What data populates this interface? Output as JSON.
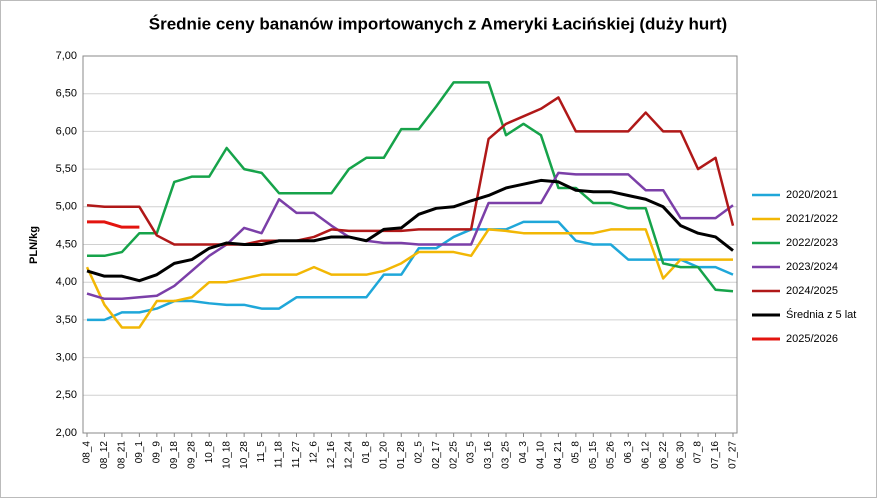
{
  "chart_data": {
    "type": "line",
    "title": "Średnie ceny bananów  importowanych  z Ameryki Łacińskiej  (duży hurt)",
    "y_label": "PLN/kg",
    "categories": [
      "08_4",
      "08_12",
      "08_21",
      "09_1",
      "09_9",
      "09_18",
      "09_28",
      "10_8",
      "10_18",
      "10_28",
      "11_5",
      "11_18",
      "11_27",
      "12_6",
      "12_16",
      "12_24",
      "01_8",
      "01_20",
      "01_28",
      "02_5",
      "02_17",
      "02_25",
      "03_5",
      "03_16",
      "03_25",
      "04_3",
      "04_10",
      "04_21",
      "05_8",
      "05_15",
      "05_26",
      "06_3",
      "06_12",
      "06_22",
      "06_30",
      "07_8",
      "07_16",
      "07_27"
    ],
    "ylim": [
      2,
      7
    ],
    "yticks": [
      {
        "value": 2,
        "label": "2,00"
      },
      {
        "value": 2.5,
        "label": "2,50"
      },
      {
        "value": 3,
        "label": "3,00"
      },
      {
        "value": 3.5,
        "label": "3,50"
      },
      {
        "value": 4,
        "label": "4,00"
      },
      {
        "value": 4.5,
        "label": "4,50"
      },
      {
        "value": 5,
        "label": "5,00"
      },
      {
        "value": 5.5,
        "label": "5,50"
      },
      {
        "value": 6,
        "label": "6,00"
      },
      {
        "value": 6.5,
        "label": "6,50"
      },
      {
        "value": 7,
        "label": "7,00"
      }
    ],
    "grid": true,
    "legend": "right",
    "series": [
      {
        "name": "2020/2021",
        "color": "#1fa7d9",
        "values": [
          3.5,
          3.5,
          3.6,
          3.6,
          3.65,
          3.75,
          3.75,
          3.72,
          3.7,
          3.7,
          3.65,
          3.65,
          3.8,
          3.8,
          3.8,
          3.8,
          3.8,
          4.1,
          4.1,
          4.45,
          4.45,
          4.6,
          4.7,
          4.7,
          4.7,
          4.8,
          4.8,
          4.8,
          4.55,
          4.5,
          4.5,
          4.3,
          4.3,
          4.3,
          4.3,
          4.2,
          4.2,
          4.1
        ]
      },
      {
        "name": "2021/2022",
        "color": "#f2b705",
        "values": [
          4.2,
          3.7,
          3.4,
          3.4,
          3.75,
          3.75,
          3.8,
          4.0,
          4.0,
          4.05,
          4.1,
          4.1,
          4.1,
          4.2,
          4.1,
          4.1,
          4.1,
          4.15,
          4.25,
          4.4,
          4.4,
          4.4,
          4.35,
          4.7,
          4.68,
          4.65,
          4.65,
          4.65,
          4.65,
          4.65,
          4.7,
          4.7,
          4.7,
          4.05,
          4.3,
          4.3,
          4.3,
          4.3
        ]
      },
      {
        "name": "2022/2023",
        "color": "#16a34a",
        "values": [
          4.35,
          4.35,
          4.4,
          4.65,
          4.65,
          5.33,
          5.4,
          5.4,
          5.78,
          5.5,
          5.45,
          5.18,
          5.18,
          5.18,
          5.18,
          5.5,
          5.65,
          5.65,
          6.03,
          6.03,
          6.33,
          6.65,
          6.65,
          6.65,
          5.95,
          6.1,
          5.95,
          5.25,
          5.25,
          5.05,
          5.05,
          4.98,
          4.98,
          4.25,
          4.2,
          4.2,
          3.9,
          3.88
        ]
      },
      {
        "name": "2023/2024",
        "color": "#7b3fa8",
        "values": [
          3.85,
          3.78,
          3.78,
          3.8,
          3.82,
          3.95,
          4.15,
          4.35,
          4.5,
          4.72,
          4.65,
          5.1,
          4.92,
          4.92,
          4.75,
          4.6,
          4.55,
          4.52,
          4.52,
          4.5,
          4.5,
          4.5,
          4.5,
          5.05,
          5.05,
          5.05,
          5.05,
          5.45,
          5.43,
          5.43,
          5.43,
          5.43,
          5.22,
          5.22,
          4.85,
          4.85,
          4.85,
          5.02
        ]
      },
      {
        "name": "2024/2025",
        "color": "#b01818",
        "values": [
          5.02,
          5.0,
          5.0,
          5.0,
          4.62,
          4.5,
          4.5,
          4.5,
          4.5,
          4.5,
          4.55,
          4.55,
          4.55,
          4.6,
          4.7,
          4.68,
          4.68,
          4.68,
          4.68,
          4.7,
          4.7,
          4.7,
          4.7,
          5.9,
          6.1,
          6.2,
          6.3,
          6.45,
          6.0,
          6.0,
          6.0,
          6.0,
          6.25,
          6.0,
          6.0,
          5.5,
          5.65,
          4.75
        ]
      },
      {
        "name": "Średnia z 5 lat",
        "color": "#000000",
        "values": [
          4.15,
          4.08,
          4.08,
          4.02,
          4.1,
          4.25,
          4.3,
          4.45,
          4.52,
          4.5,
          4.5,
          4.55,
          4.55,
          4.55,
          4.6,
          4.6,
          4.55,
          4.7,
          4.72,
          4.9,
          4.98,
          5.0,
          5.08,
          5.15,
          5.25,
          5.3,
          5.35,
          5.33,
          5.22,
          5.2,
          5.2,
          5.15,
          5.1,
          5.0,
          4.75,
          4.65,
          4.6,
          4.42
        ]
      },
      {
        "name": "2025/2026",
        "color": "#e3140f",
        "values": [
          4.8,
          4.8,
          4.73,
          4.73,
          null,
          null,
          null,
          null,
          null,
          null,
          null,
          null,
          null,
          null,
          null,
          null,
          null,
          null,
          null,
          null,
          null,
          null,
          null,
          null,
          null,
          null,
          null,
          null,
          null,
          null,
          null,
          null,
          null,
          null,
          null,
          null,
          null,
          null
        ]
      }
    ]
  }
}
